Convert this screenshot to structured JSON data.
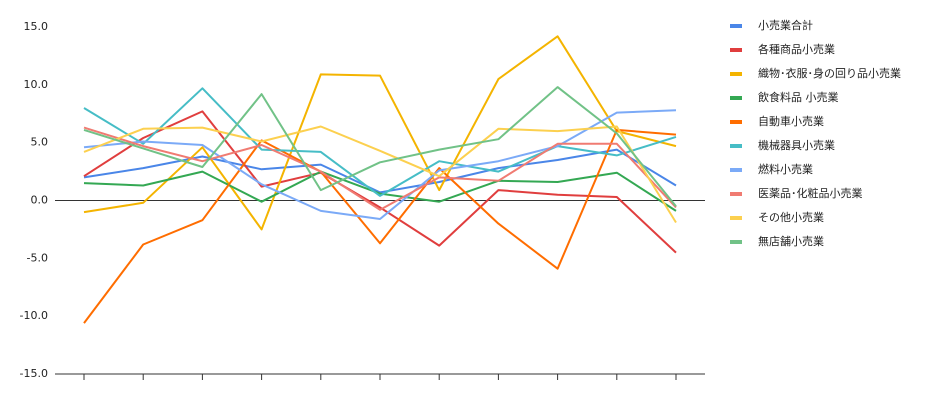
{
  "chart_data": {
    "type": "line",
    "categories": [
      null,
      null,
      null,
      null,
      null,
      null,
      null,
      null,
      null,
      null,
      null
    ],
    "ylim": [
      -15,
      15
    ],
    "yticks": [
      {
        "value": -15,
        "label": "-15.0"
      },
      {
        "value": -10,
        "label": "-10.0"
      },
      {
        "value": -5,
        "label": "-5.0"
      },
      {
        "value": 0,
        "label": "0.0"
      },
      {
        "value": 5,
        "label": "5.0"
      },
      {
        "value": 10,
        "label": "10.0"
      },
      {
        "value": 15,
        "label": "15.0"
      }
    ],
    "grid": false,
    "legend": "right",
    "series": [
      {
        "name": "小売業合計",
        "color": "#4a86e8",
        "values": [
          2.0,
          2.8,
          3.8,
          2.7,
          3.1,
          0.7,
          1.6,
          2.8,
          3.5,
          4.4,
          1.3
        ]
      },
      {
        "name": "各種商品小売業",
        "color": "#e03e3e",
        "values": [
          2.1,
          5.4,
          7.7,
          1.2,
          2.4,
          -0.6,
          -3.9,
          0.9,
          0.5,
          0.3,
          -4.5
        ]
      },
      {
        "name": "織物･衣服･身の回り品小売業",
        "color": "#f4b400",
        "values": [
          -1.0,
          -0.2,
          4.6,
          -2.5,
          10.9,
          10.8,
          0.9,
          10.5,
          14.2,
          6.0,
          4.7
        ]
      },
      {
        "name": "飲食料品 小売業",
        "color": "#34a853",
        "values": [
          1.5,
          1.3,
          2.5,
          -0.1,
          2.5,
          0.6,
          -0.1,
          1.7,
          1.6,
          2.4,
          -0.9
        ]
      },
      {
        "name": "自動車小売業",
        "color": "#ff6d00",
        "values": [
          -10.6,
          -3.8,
          -1.7,
          5.2,
          2.5,
          -3.7,
          2.8,
          -2.0,
          -5.9,
          6.1,
          5.7
        ]
      },
      {
        "name": "機械器具小売業",
        "color": "#46bdc6",
        "values": [
          8.0,
          4.9,
          9.7,
          4.4,
          4.2,
          0.4,
          3.4,
          2.5,
          4.7,
          3.9,
          5.5
        ]
      },
      {
        "name": "燃料小売業",
        "color": "#7baaf7",
        "values": [
          4.6,
          5.1,
          4.8,
          1.4,
          -0.9,
          -1.6,
          2.6,
          3.4,
          4.7,
          7.6,
          7.8
        ]
      },
      {
        "name": "医薬品･化粧品小売業",
        "color": "#f07b72",
        "values": [
          6.3,
          4.7,
          3.4,
          4.8,
          2.5,
          -0.8,
          2.0,
          1.7,
          4.9,
          4.9,
          -0.6
        ]
      },
      {
        "name": "その他小売業",
        "color": "#fcd04f",
        "values": [
          4.2,
          6.2,
          6.3,
          5.1,
          6.4,
          4.3,
          2.1,
          6.2,
          6.0,
          6.4,
          -1.9
        ]
      },
      {
        "name": "無店舗小売業",
        "color": "#71c287",
        "values": [
          6.1,
          4.5,
          2.9,
          9.2,
          0.9,
          3.3,
          4.4,
          5.3,
          9.8,
          5.8,
          -0.5
        ]
      }
    ]
  }
}
